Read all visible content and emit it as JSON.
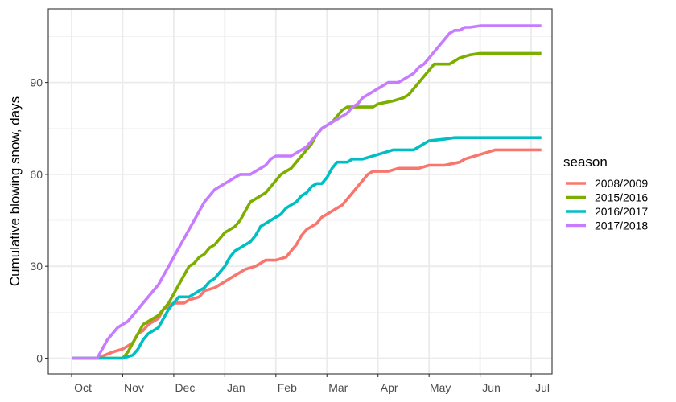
{
  "chart_data": {
    "type": "line",
    "title": "",
    "xlabel": "",
    "ylabel": "Cumulative blowing snow, days",
    "x_ticks": [
      "Oct",
      "Nov",
      "Dec",
      "Jan",
      "Feb",
      "Mar",
      "Apr",
      "May",
      "Jun",
      "Jul"
    ],
    "x_unit": "month offset from Oct 1",
    "xlim": [
      0,
      9.35
    ],
    "ylim": [
      -4,
      113
    ],
    "y_ticks": [
      0,
      30,
      60,
      90
    ],
    "grid": true,
    "legend": {
      "title": "season",
      "position": "right"
    },
    "series": [
      {
        "name": "2008/2009",
        "color": "#F8766D",
        "points": [
          [
            0,
            0
          ],
          [
            0.5,
            0
          ],
          [
            0.65,
            1
          ],
          [
            0.8,
            2
          ],
          [
            1.0,
            3
          ],
          [
            1.1,
            4
          ],
          [
            1.2,
            5
          ],
          [
            1.3,
            8
          ],
          [
            1.4,
            9
          ],
          [
            1.5,
            11
          ],
          [
            1.6,
            12
          ],
          [
            1.7,
            13
          ],
          [
            1.8,
            16
          ],
          [
            1.9,
            17
          ],
          [
            2.0,
            18
          ],
          [
            2.2,
            18
          ],
          [
            2.3,
            19
          ],
          [
            2.5,
            20
          ],
          [
            2.6,
            22
          ],
          [
            2.8,
            23
          ],
          [
            3.0,
            25
          ],
          [
            3.1,
            26
          ],
          [
            3.2,
            27
          ],
          [
            3.4,
            29
          ],
          [
            3.6,
            30
          ],
          [
            3.7,
            31
          ],
          [
            3.8,
            32
          ],
          [
            4.0,
            32
          ],
          [
            4.2,
            33
          ],
          [
            4.3,
            35
          ],
          [
            4.4,
            37
          ],
          [
            4.5,
            40
          ],
          [
            4.6,
            42
          ],
          [
            4.8,
            44
          ],
          [
            4.9,
            46
          ],
          [
            5.0,
            47
          ],
          [
            5.1,
            48
          ],
          [
            5.2,
            49
          ],
          [
            5.3,
            50
          ],
          [
            5.4,
            52
          ],
          [
            5.5,
            54
          ],
          [
            5.6,
            56
          ],
          [
            5.7,
            58
          ],
          [
            5.8,
            60
          ],
          [
            5.9,
            61
          ],
          [
            6.2,
            61
          ],
          [
            6.4,
            62
          ],
          [
            6.8,
            62
          ],
          [
            7.0,
            63
          ],
          [
            7.3,
            63
          ],
          [
            7.6,
            64
          ],
          [
            7.7,
            65
          ],
          [
            7.9,
            66
          ],
          [
            8.1,
            67
          ],
          [
            8.3,
            68
          ],
          [
            9.2,
            68
          ]
        ]
      },
      {
        "name": "2015/2016",
        "color": "#7CAE00",
        "points": [
          [
            0,
            0
          ],
          [
            1.0,
            0
          ],
          [
            1.1,
            2
          ],
          [
            1.2,
            5
          ],
          [
            1.3,
            8
          ],
          [
            1.4,
            11
          ],
          [
            1.5,
            12
          ],
          [
            1.6,
            13
          ],
          [
            1.7,
            14
          ],
          [
            1.8,
            16
          ],
          [
            1.9,
            18
          ],
          [
            2.0,
            21
          ],
          [
            2.1,
            24
          ],
          [
            2.2,
            27
          ],
          [
            2.3,
            30
          ],
          [
            2.4,
            31
          ],
          [
            2.5,
            33
          ],
          [
            2.6,
            34
          ],
          [
            2.7,
            36
          ],
          [
            2.8,
            37
          ],
          [
            2.9,
            39
          ],
          [
            3.0,
            41
          ],
          [
            3.1,
            42
          ],
          [
            3.2,
            43
          ],
          [
            3.3,
            45
          ],
          [
            3.4,
            48
          ],
          [
            3.5,
            51
          ],
          [
            3.6,
            52
          ],
          [
            3.7,
            53
          ],
          [
            3.8,
            54
          ],
          [
            3.9,
            56
          ],
          [
            4.0,
            58
          ],
          [
            4.1,
            60
          ],
          [
            4.2,
            61
          ],
          [
            4.3,
            62
          ],
          [
            4.4,
            64
          ],
          [
            4.5,
            66
          ],
          [
            4.6,
            68
          ],
          [
            4.7,
            70
          ],
          [
            4.8,
            73
          ],
          [
            4.9,
            75
          ],
          [
            5.0,
            76
          ],
          [
            5.1,
            77
          ],
          [
            5.2,
            79
          ],
          [
            5.3,
            81
          ],
          [
            5.4,
            82
          ],
          [
            5.9,
            82
          ],
          [
            6.0,
            83
          ],
          [
            6.3,
            84
          ],
          [
            6.5,
            85
          ],
          [
            6.6,
            86
          ],
          [
            6.7,
            88
          ],
          [
            6.8,
            90
          ],
          [
            6.9,
            92
          ],
          [
            7.0,
            94
          ],
          [
            7.1,
            96
          ],
          [
            7.4,
            96
          ],
          [
            7.5,
            97
          ],
          [
            7.6,
            98
          ],
          [
            7.8,
            99
          ],
          [
            8.0,
            99.5
          ],
          [
            9.2,
            99.5
          ]
        ]
      },
      {
        "name": "2016/2017",
        "color": "#00BFC4",
        "points": [
          [
            0,
            0
          ],
          [
            1.0,
            0
          ],
          [
            1.2,
            1
          ],
          [
            1.3,
            3
          ],
          [
            1.4,
            6
          ],
          [
            1.5,
            8
          ],
          [
            1.6,
            9
          ],
          [
            1.7,
            10
          ],
          [
            1.8,
            13
          ],
          [
            1.9,
            16
          ],
          [
            2.0,
            18
          ],
          [
            2.1,
            20
          ],
          [
            2.2,
            20
          ],
          [
            2.3,
            20
          ],
          [
            2.4,
            21
          ],
          [
            2.5,
            22
          ],
          [
            2.6,
            23
          ],
          [
            2.7,
            25
          ],
          [
            2.8,
            26
          ],
          [
            2.9,
            28
          ],
          [
            3.0,
            30
          ],
          [
            3.1,
            33
          ],
          [
            3.2,
            35
          ],
          [
            3.3,
            36
          ],
          [
            3.4,
            37
          ],
          [
            3.5,
            38
          ],
          [
            3.6,
            40
          ],
          [
            3.7,
            43
          ],
          [
            3.8,
            44
          ],
          [
            3.9,
            45
          ],
          [
            4.0,
            46
          ],
          [
            4.1,
            47
          ],
          [
            4.2,
            49
          ],
          [
            4.3,
            50
          ],
          [
            4.4,
            51
          ],
          [
            4.5,
            53
          ],
          [
            4.6,
            54
          ],
          [
            4.7,
            56
          ],
          [
            4.8,
            57
          ],
          [
            4.9,
            57
          ],
          [
            5.0,
            59
          ],
          [
            5.1,
            62
          ],
          [
            5.2,
            64
          ],
          [
            5.4,
            64
          ],
          [
            5.5,
            65
          ],
          [
            5.7,
            65
          ],
          [
            5.9,
            66
          ],
          [
            6.1,
            67
          ],
          [
            6.3,
            68
          ],
          [
            6.7,
            68
          ],
          [
            6.8,
            69
          ],
          [
            6.9,
            70
          ],
          [
            7.0,
            71
          ],
          [
            7.3,
            71.5
          ],
          [
            7.5,
            72
          ],
          [
            9.2,
            72
          ]
        ]
      },
      {
        "name": "2017/2018",
        "color": "#C77CFF",
        "points": [
          [
            0,
            0
          ],
          [
            0.5,
            0
          ],
          [
            0.6,
            3
          ],
          [
            0.7,
            6
          ],
          [
            0.8,
            8
          ],
          [
            0.9,
            10
          ],
          [
            1.0,
            11
          ],
          [
            1.1,
            12
          ],
          [
            1.2,
            14
          ],
          [
            1.3,
            16
          ],
          [
            1.4,
            18
          ],
          [
            1.5,
            20
          ],
          [
            1.6,
            22
          ],
          [
            1.7,
            24
          ],
          [
            1.8,
            27
          ],
          [
            1.9,
            30
          ],
          [
            2.0,
            33
          ],
          [
            2.1,
            36
          ],
          [
            2.2,
            39
          ],
          [
            2.3,
            42
          ],
          [
            2.4,
            45
          ],
          [
            2.5,
            48
          ],
          [
            2.6,
            51
          ],
          [
            2.7,
            53
          ],
          [
            2.8,
            55
          ],
          [
            2.9,
            56
          ],
          [
            3.0,
            57
          ],
          [
            3.1,
            58
          ],
          [
            3.2,
            59
          ],
          [
            3.3,
            60
          ],
          [
            3.5,
            60
          ],
          [
            3.6,
            61
          ],
          [
            3.7,
            62
          ],
          [
            3.8,
            63
          ],
          [
            3.9,
            65
          ],
          [
            4.0,
            66
          ],
          [
            4.1,
            66
          ],
          [
            4.3,
            66
          ],
          [
            4.4,
            67
          ],
          [
            4.5,
            68
          ],
          [
            4.6,
            69
          ],
          [
            4.7,
            71
          ],
          [
            4.8,
            73
          ],
          [
            4.9,
            75
          ],
          [
            5.0,
            76
          ],
          [
            5.1,
            77
          ],
          [
            5.2,
            78
          ],
          [
            5.3,
            79
          ],
          [
            5.4,
            80
          ],
          [
            5.5,
            82
          ],
          [
            5.6,
            83
          ],
          [
            5.7,
            85
          ],
          [
            5.8,
            86
          ],
          [
            5.9,
            87
          ],
          [
            6.0,
            88
          ],
          [
            6.1,
            89
          ],
          [
            6.2,
            90
          ],
          [
            6.4,
            90
          ],
          [
            6.5,
            91
          ],
          [
            6.6,
            92
          ],
          [
            6.7,
            93
          ],
          [
            6.8,
            95
          ],
          [
            6.9,
            96
          ],
          [
            7.0,
            98
          ],
          [
            7.1,
            100
          ],
          [
            7.2,
            102
          ],
          [
            7.3,
            104
          ],
          [
            7.4,
            106
          ],
          [
            7.5,
            107
          ],
          [
            7.6,
            107
          ],
          [
            7.7,
            108
          ],
          [
            7.8,
            108
          ],
          [
            8.0,
            108.5
          ],
          [
            9.2,
            108.5
          ]
        ]
      }
    ]
  }
}
